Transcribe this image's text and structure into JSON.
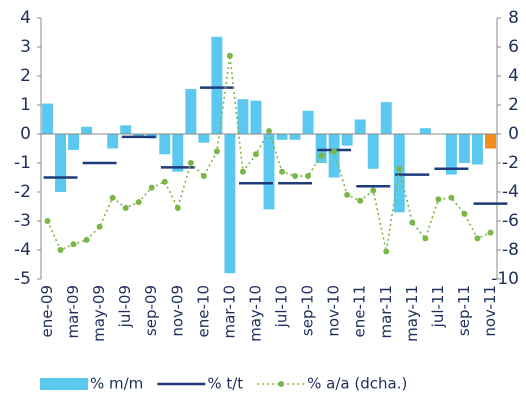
{
  "chart_data": {
    "type": "bar-line",
    "categories": [
      "ene-09",
      null,
      "mar-09",
      null,
      "may-09",
      null,
      "jul-09",
      null,
      "sep-09",
      null,
      "nov-09",
      null,
      "ene-10",
      null,
      "mar-10",
      null,
      "may-10",
      null,
      "jul-10",
      null,
      "sep-10",
      null,
      "nov-10",
      null,
      "ene-11",
      null,
      "mar-11",
      null,
      "may-11",
      null,
      "jul-11",
      null,
      "sep-11",
      null,
      "nov-11"
    ],
    "ylim": [
      -5,
      4
    ],
    "yticks": [
      -5,
      -4,
      -3,
      -2,
      -1,
      0,
      1,
      2,
      3,
      4
    ],
    "y2lim": [
      -10,
      8
    ],
    "y2ticks": [
      -10,
      -8,
      -6,
      -4,
      -2,
      0,
      2,
      4,
      6,
      8
    ],
    "grid": false,
    "legend": "bottom",
    "series": [
      {
        "name": "% m/m",
        "type": "bar",
        "color": "#5bc8ef",
        "values": [
          1.05,
          -2.0,
          -0.55,
          0.25,
          0,
          -0.5,
          0.3,
          -0.1,
          -0.15,
          -0.7,
          -1.3,
          1.55,
          -0.3,
          3.35,
          -4.8,
          1.2,
          1.15,
          -2.6,
          -0.2,
          -0.2,
          0.8,
          -1.0,
          -1.5,
          -0.4,
          0.5,
          -1.2,
          1.1,
          -2.7,
          0,
          0.2,
          0,
          -1.4,
          -1.0,
          -1.05,
          -0.5
        ],
        "point_colors": [
          "#5bc8ef",
          "#5bc8ef",
          "#5bc8ef",
          "#5bc8ef",
          "#5bc8ef",
          "#5bc8ef",
          "#5bc8ef",
          "#5bc8ef",
          "#5bc8ef",
          "#5bc8ef",
          "#5bc8ef",
          "#5bc8ef",
          "#5bc8ef",
          "#5bc8ef",
          "#5bc8ef",
          "#5bc8ef",
          "#5bc8ef",
          "#5bc8ef",
          "#5bc8ef",
          "#5bc8ef",
          "#5bc8ef",
          "#5bc8ef",
          "#5bc8ef",
          "#5bc8ef",
          "#5bc8ef",
          "#5bc8ef",
          "#5bc8ef",
          "#5bc8ef",
          "#5bc8ef",
          "#5bc8ef",
          "#5bc8ef",
          "#5bc8ef",
          "#5bc8ef",
          "#5bc8ef",
          "#f58a1f"
        ]
      },
      {
        "name": "% t/t",
        "type": "step",
        "color": "#1f3a7a",
        "values": [
          null,
          -1.5,
          null,
          null,
          -1.0,
          null,
          null,
          -0.1,
          null,
          null,
          -1.15,
          null,
          null,
          1.6,
          null,
          null,
          -1.7,
          null,
          null,
          -1.7,
          null,
          null,
          -0.55,
          null,
          null,
          -1.8,
          null,
          null,
          -1.4,
          null,
          null,
          -1.2,
          null,
          null,
          -2.4
        ]
      },
      {
        "name": "% a/a (dcha.)",
        "type": "line",
        "axis": "y2",
        "color": "#7ab648",
        "values": [
          -6,
          -8,
          -7.6,
          -7.3,
          -6.4,
          -4.4,
          -5.1,
          -4.7,
          -3.7,
          -3.3,
          -5.1,
          -2,
          -2.9,
          -1.2,
          5.4,
          -2.6,
          -1.4,
          0.2,
          -2.6,
          -2.9,
          -2.9,
          -1.5,
          -1.2,
          -4.2,
          -4.6,
          -3.9,
          -8.1,
          -2.4,
          -6.1,
          -7.2,
          -4.5,
          -4.4,
          -5.5,
          -7.2,
          -6.8
        ]
      }
    ]
  }
}
